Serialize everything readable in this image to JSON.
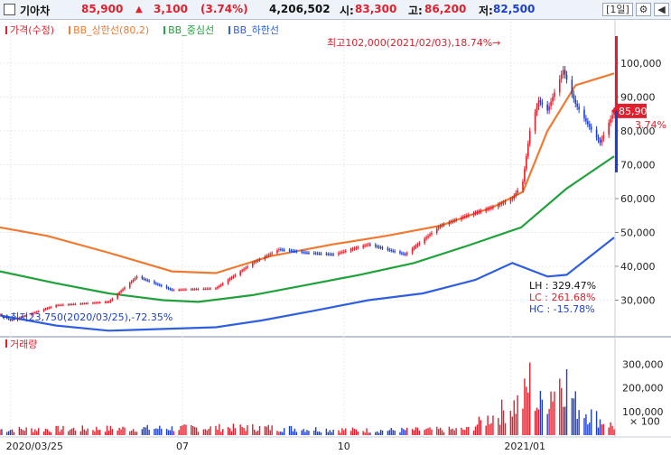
{
  "header": {
    "stock_name": "기아차",
    "price": "85,900",
    "change_arrow": "▲",
    "change": "3,100",
    "change_pct": "(3.74%)",
    "volume": "4,206,502",
    "open_label": "시:",
    "open": "83,300",
    "high_label": "고:",
    "high": "86,200",
    "low_label": "저:",
    "low": "82,500",
    "period_button": "[1일]",
    "colors": {
      "up": "#e0202c",
      "down": "#1c3fcf",
      "text": "#111111"
    }
  },
  "chart_data": [
    {
      "type": "candlestick",
      "title": "",
      "legend": [
        {
          "name": "가격(수정)",
          "color": "#e0202c"
        },
        {
          "name": "BB_상한선(80,2)",
          "color": "#f07a32"
        },
        {
          "name": "BB_중심선",
          "color": "#1fa23a"
        },
        {
          "name": "BB_하한선",
          "color": "#2f5fe0"
        }
      ],
      "x_ticks": [
        {
          "date": "2020-03-25",
          "label": "2020/03/25"
        },
        {
          "date": "2020-07-01",
          "label": "07"
        },
        {
          "date": "2020-10-01",
          "label": "10"
        },
        {
          "date": "2021-01-04",
          "label": "2021/01"
        }
      ],
      "x_range": [
        "2020-03-19",
        "2021-03-04"
      ],
      "y_ticks": [
        "100,000",
        "90,000",
        "80,000",
        "70,000",
        "60,000",
        "50,000",
        "40,000",
        "30,000"
      ],
      "ylim": [
        20000,
        108000
      ],
      "price_keypoints": [
        {
          "date": "2020-03-19",
          "close": 25800
        },
        {
          "date": "2020-03-25",
          "close": 24000
        },
        {
          "date": "2020-04-20",
          "close": 28500
        },
        {
          "date": "2020-05-20",
          "close": 29500
        },
        {
          "date": "2020-06-05",
          "close": 37000
        },
        {
          "date": "2020-06-25",
          "close": 33000
        },
        {
          "date": "2020-07-20",
          "close": 33500
        },
        {
          "date": "2020-08-10",
          "close": 41000
        },
        {
          "date": "2020-08-25",
          "close": 45000
        },
        {
          "date": "2020-09-10",
          "close": 44000
        },
        {
          "date": "2020-09-25",
          "close": 43500
        },
        {
          "date": "2020-10-15",
          "close": 46500
        },
        {
          "date": "2020-11-05",
          "close": 43500
        },
        {
          "date": "2020-11-25",
          "close": 52000
        },
        {
          "date": "2020-12-10",
          "close": 55000
        },
        {
          "date": "2020-12-25",
          "close": 57500
        },
        {
          "date": "2021-01-05",
          "close": 60000
        },
        {
          "date": "2021-01-11",
          "close": 65000
        },
        {
          "date": "2021-01-15",
          "close": 80000
        },
        {
          "date": "2021-01-20",
          "close": 89000
        },
        {
          "date": "2021-01-25",
          "close": 86000
        },
        {
          "date": "2021-02-03",
          "close": 98000
        },
        {
          "date": "2021-02-10",
          "close": 88000
        },
        {
          "date": "2021-02-17",
          "close": 82000
        },
        {
          "date": "2021-02-24",
          "close": 76500
        },
        {
          "date": "2021-03-04",
          "close": 85900
        }
      ],
      "bb_upper": [
        {
          "date": "2020-03-19",
          "value": 51500
        },
        {
          "date": "2020-04-15",
          "value": 49000
        },
        {
          "date": "2020-05-20",
          "value": 44000
        },
        {
          "date": "2020-06-25",
          "value": 38500
        },
        {
          "date": "2020-07-20",
          "value": 38000
        },
        {
          "date": "2020-08-20",
          "value": 43000
        },
        {
          "date": "2020-09-25",
          "value": 46500
        },
        {
          "date": "2020-10-25",
          "value": 49000
        },
        {
          "date": "2020-11-25",
          "value": 52000
        },
        {
          "date": "2020-12-25",
          "value": 57500
        },
        {
          "date": "2021-01-11",
          "value": 62000
        },
        {
          "date": "2021-01-25",
          "value": 80000
        },
        {
          "date": "2021-02-10",
          "value": 93500
        },
        {
          "date": "2021-03-04",
          "value": 97000
        }
      ],
      "bb_middle": [
        {
          "date": "2020-03-19",
          "value": 38500
        },
        {
          "date": "2020-04-20",
          "value": 35000
        },
        {
          "date": "2020-05-20",
          "value": 32000
        },
        {
          "date": "2020-06-20",
          "value": 30000
        },
        {
          "date": "2020-07-10",
          "value": 29500
        },
        {
          "date": "2020-08-10",
          "value": 31500
        },
        {
          "date": "2020-09-10",
          "value": 34500
        },
        {
          "date": "2020-10-10",
          "value": 37500
        },
        {
          "date": "2020-11-10",
          "value": 41000
        },
        {
          "date": "2020-12-10",
          "value": 46000
        },
        {
          "date": "2021-01-10",
          "value": 51500
        },
        {
          "date": "2021-02-05",
          "value": 63000
        },
        {
          "date": "2021-03-04",
          "value": 72500
        }
      ],
      "bb_lower": [
        {
          "date": "2020-03-19",
          "value": 25500
        },
        {
          "date": "2020-04-20",
          "value": 22500
        },
        {
          "date": "2020-05-20",
          "value": 21000
        },
        {
          "date": "2020-06-20",
          "value": 21500
        },
        {
          "date": "2020-07-20",
          "value": 22000
        },
        {
          "date": "2020-08-15",
          "value": 24000
        },
        {
          "date": "2020-09-15",
          "value": 27000
        },
        {
          "date": "2020-10-15",
          "value": 30000
        },
        {
          "date": "2020-11-15",
          "value": 32000
        },
        {
          "date": "2020-12-15",
          "value": 36000
        },
        {
          "date": "2021-01-05",
          "value": 41000
        },
        {
          "date": "2021-01-25",
          "value": 37000
        },
        {
          "date": "2021-02-05",
          "value": 37500
        },
        {
          "date": "2021-03-04",
          "value": 48500
        }
      ],
      "current_price_tag": "85,900",
      "current_pct_tag": "3.74%",
      "annotations": {
        "max": "최고102,000(2021/02/03),18.74%→",
        "min": "←최저23,750(2020/03/25),-72.35%",
        "lh": "LH : 329.47%",
        "lc": "LC : 261.68%",
        "hc": "HC : -15.78%"
      }
    },
    {
      "type": "bar",
      "title": "",
      "legend": [
        {
          "name": "거래량",
          "color": "#e0202c"
        }
      ],
      "y_ticks": [
        "300,000",
        "200,000",
        "100,000",
        "× 100"
      ],
      "ylim": [
        0,
        340000
      ],
      "unit": "× 100",
      "volume_keypoints": [
        {
          "date": "2020-03-19",
          "value": 30000
        },
        {
          "date": "2020-06-05",
          "value": 35000
        },
        {
          "date": "2020-08-10",
          "value": 40000
        },
        {
          "date": "2020-10-15",
          "value": 25000
        },
        {
          "date": "2020-12-10",
          "value": 30000
        },
        {
          "date": "2021-01-11",
          "value": 180000
        },
        {
          "date": "2021-01-15",
          "value": 280000
        },
        {
          "date": "2021-01-20",
          "value": 150000
        },
        {
          "date": "2021-02-03",
          "value": 320000
        },
        {
          "date": "2021-02-10",
          "value": 160000
        },
        {
          "date": "2021-02-24",
          "value": 80000
        },
        {
          "date": "2021-03-04",
          "value": 45000
        }
      ]
    }
  ]
}
